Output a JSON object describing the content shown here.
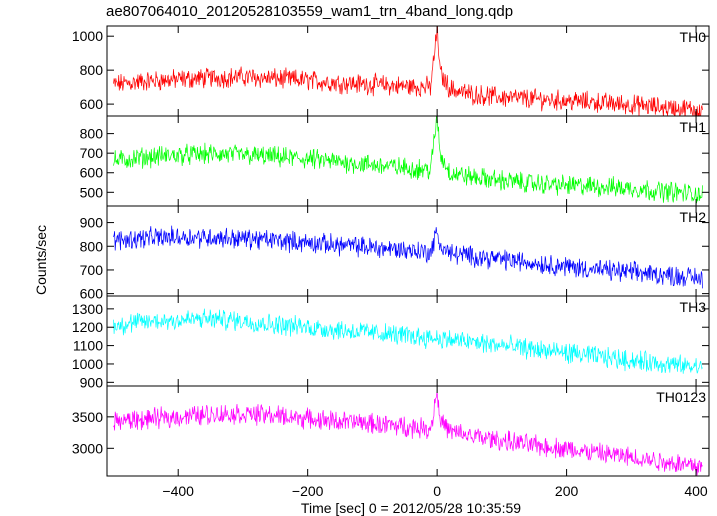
{
  "chart_data": {
    "type": "line",
    "title": "ae807064010_20120528103559_wam1_trn_4band_long.qdp",
    "xlabel": "Time [sec] 0 = 2012/05/28 10:35:59",
    "ylabel": "Counts/sec",
    "xlim": [
      -510,
      420
    ],
    "xticks": [
      -400,
      -200,
      0,
      200,
      400
    ],
    "series": [
      {
        "name": "TH0",
        "color": "#ff0000",
        "ylim": [
          530,
          1060
        ],
        "yticks": [
          600,
          800,
          1000
        ],
        "x": [
          -500,
          -450,
          -400,
          -350,
          -300,
          -250,
          -200,
          -150,
          -100,
          -50,
          -10,
          0,
          5,
          20,
          50,
          100,
          150,
          200,
          250,
          300,
          350,
          410
        ],
        "values": [
          715,
          735,
          745,
          755,
          760,
          750,
          740,
          725,
          715,
          705,
          700,
          1040,
          780,
          690,
          660,
          640,
          630,
          620,
          610,
          595,
          580,
          565
        ]
      },
      {
        "name": "TH1",
        "color": "#00ff00",
        "ylim": [
          430,
          890
        ],
        "yticks": [
          500,
          600,
          700,
          800
        ],
        "x": [
          -500,
          -450,
          -400,
          -350,
          -300,
          -250,
          -200,
          -150,
          -100,
          -50,
          -10,
          0,
          5,
          20,
          50,
          100,
          150,
          200,
          250,
          300,
          350,
          410
        ],
        "values": [
          660,
          680,
          690,
          695,
          690,
          680,
          670,
          655,
          640,
          625,
          615,
          890,
          690,
          600,
          580,
          560,
          545,
          535,
          530,
          520,
          505,
          490
        ]
      },
      {
        "name": "TH2",
        "color": "#0000ff",
        "ylim": [
          590,
          970
        ],
        "yticks": [
          600,
          700,
          800,
          900
        ],
        "x": [
          -500,
          -450,
          -400,
          -350,
          -300,
          -250,
          -200,
          -150,
          -100,
          -50,
          -10,
          0,
          5,
          20,
          50,
          100,
          150,
          200,
          250,
          300,
          350,
          410
        ],
        "values": [
          825,
          835,
          840,
          838,
          832,
          825,
          815,
          805,
          795,
          785,
          775,
          860,
          800,
          770,
          760,
          745,
          730,
          715,
          700,
          690,
          680,
          665
        ]
      },
      {
        "name": "TH3",
        "color": "#00ffff",
        "ylim": [
          880,
          1370
        ],
        "yticks": [
          900,
          1000,
          1100,
          1200,
          1300
        ],
        "x": [
          -500,
          -450,
          -400,
          -350,
          -300,
          -250,
          -200,
          -150,
          -100,
          -50,
          0,
          50,
          100,
          150,
          200,
          250,
          300,
          350,
          410
        ],
        "values": [
          1210,
          1230,
          1240,
          1245,
          1235,
          1215,
          1200,
          1185,
          1170,
          1155,
          1140,
          1120,
          1100,
          1080,
          1060,
          1040,
          1020,
          1000,
          980
        ]
      },
      {
        "name": "TH0123",
        "color": "#ff00ff",
        "ylim": [
          2560,
          3990
        ],
        "yticks": [
          3000,
          3500
        ],
        "x": [
          -500,
          -450,
          -400,
          -350,
          -300,
          -250,
          -200,
          -150,
          -100,
          -50,
          -10,
          0,
          5,
          20,
          50,
          100,
          150,
          200,
          250,
          300,
          350,
          410
        ],
        "values": [
          3430,
          3460,
          3500,
          3540,
          3550,
          3520,
          3470,
          3430,
          3390,
          3350,
          3310,
          3920,
          3450,
          3260,
          3200,
          3120,
          3050,
          2990,
          2920,
          2860,
          2790,
          2720
        ]
      }
    ]
  }
}
